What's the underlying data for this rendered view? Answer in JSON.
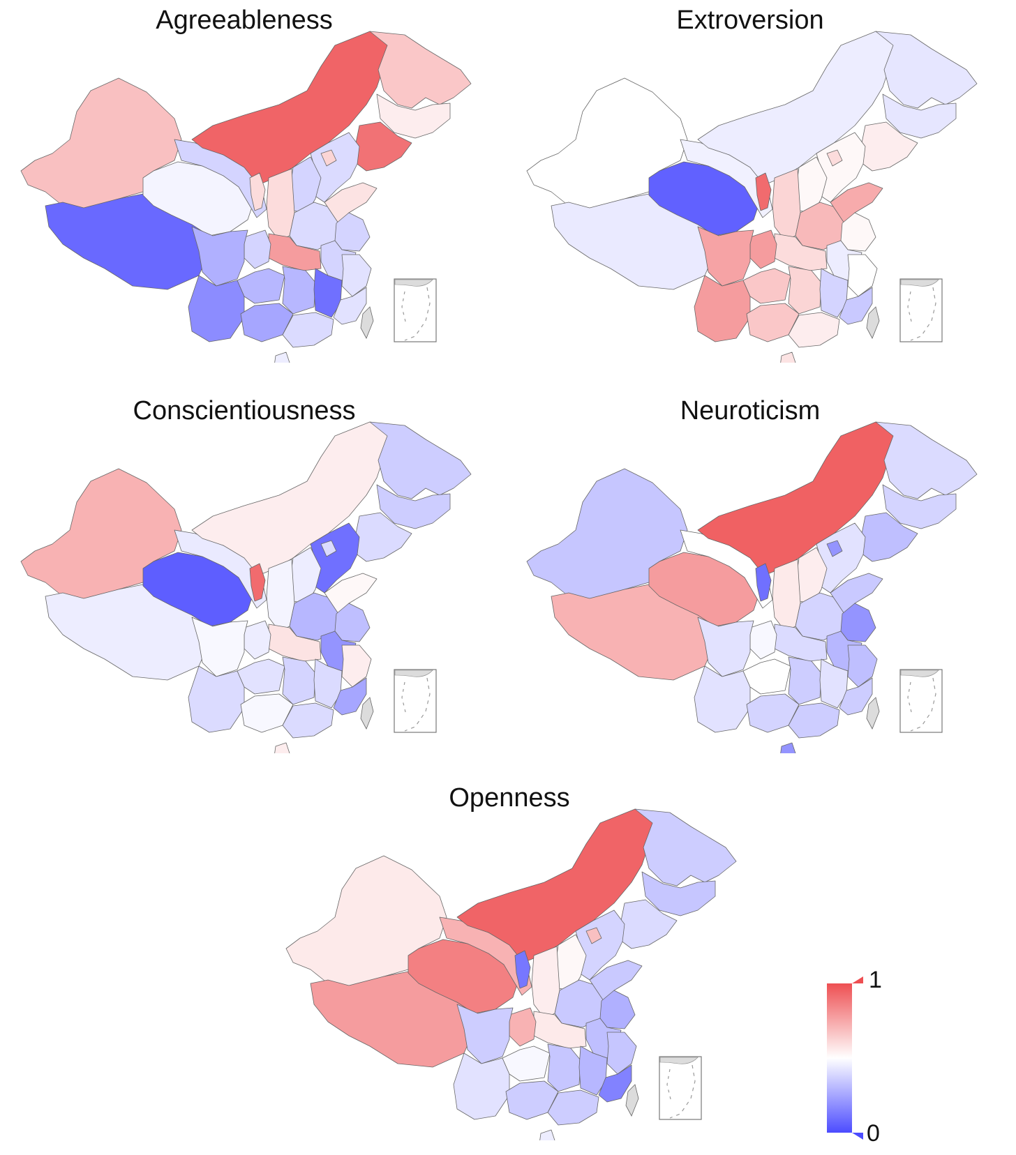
{
  "colors": {
    "high": "#ee4f52",
    "mid": "#ffffff",
    "low": "#4c4cff",
    "taiwan": "#dcdcdc",
    "border": "#666666"
  },
  "panels": [
    {
      "title": "Agreeableness",
      "values": {
        "xinjiang": 0.68,
        "tibet": 0.08,
        "qinghai": 0.47,
        "gansu": 0.38,
        "inner_mongolia": 0.94,
        "heilongjiang": 0.66,
        "jilin": 0.55,
        "liaoning": 0.9,
        "hebei": 0.4,
        "shanxi": 0.38,
        "shaanxi": 0.6,
        "ningxia": 0.6,
        "sichuan": 0.28,
        "chongqing": 0.38,
        "yunnan": 0.18,
        "guizhou": 0.3,
        "guangxi": 0.25,
        "guangdong": 0.4,
        "hunan": 0.3,
        "hubei": 0.78,
        "henan": 0.4,
        "shandong": 0.58,
        "jiangsu": 0.38,
        "anhui": 0.38,
        "zhejiang": 0.42,
        "jiangxi": 0.1,
        "fujian": 0.42,
        "hainan": 0.45,
        "beijing": 0.62
      }
    },
    {
      "title": "Extroversion",
      "values": {
        "xinjiang": 0.5,
        "tibet": 0.44,
        "qinghai": 0.06,
        "gansu": 0.46,
        "inner_mongolia": 0.45,
        "heilongjiang": 0.43,
        "jilin": 0.43,
        "liaoning": 0.55,
        "hebei": 0.52,
        "shanxi": 0.52,
        "shaanxi": 0.62,
        "ningxia": 0.92,
        "sichuan": 0.76,
        "chongqing": 0.78,
        "yunnan": 0.78,
        "guizhou": 0.66,
        "guangxi": 0.66,
        "guangdong": 0.55,
        "hunan": 0.62,
        "hubei": 0.6,
        "henan": 0.7,
        "shandong": 0.74,
        "jiangsu": 0.52,
        "anhui": 0.45,
        "zhejiang": 0.5,
        "jiangxi": 0.38,
        "fujian": 0.35,
        "hainan": 0.58,
        "beijing": 0.6
      }
    },
    {
      "title": "Conscientiousness",
      "values": {
        "xinjiang": 0.72,
        "tibet": 0.45,
        "qinghai": 0.05,
        "gansu": 0.44,
        "inner_mongolia": 0.55,
        "heilongjiang": 0.36,
        "jilin": 0.36,
        "liaoning": 0.4,
        "hebei": 0.1,
        "shanxi": 0.45,
        "shaanxi": 0.47,
        "ningxia": 0.92,
        "sichuan": 0.48,
        "chongqing": 0.45,
        "yunnan": 0.4,
        "guizhou": 0.42,
        "guangxi": 0.48,
        "guangdong": 0.4,
        "hunan": 0.38,
        "hubei": 0.58,
        "henan": 0.3,
        "shandong": 0.52,
        "jiangsu": 0.32,
        "anhui": 0.2,
        "zhejiang": 0.55,
        "jiangxi": 0.4,
        "fujian": 0.25,
        "hainan": 0.55,
        "beijing": 0.4
      }
    },
    {
      "title": "Neuroticism",
      "values": {
        "xinjiang": 0.34,
        "tibet": 0.72,
        "qinghai": 0.78,
        "gansu": 0.5,
        "inner_mongolia": 0.95,
        "heilongjiang": 0.4,
        "jilin": 0.38,
        "liaoning": 0.32,
        "hebei": 0.42,
        "shanxi": 0.55,
        "shaanxi": 0.56,
        "ningxia": 0.1,
        "sichuan": 0.42,
        "chongqing": 0.48,
        "yunnan": 0.42,
        "guizhou": 0.5,
        "guangxi": 0.38,
        "guangdong": 0.36,
        "hunan": 0.36,
        "hubei": 0.4,
        "henan": 0.38,
        "shandong": 0.35,
        "jiangsu": 0.2,
        "anhui": 0.3,
        "zhejiang": 0.32,
        "jiangxi": 0.42,
        "fujian": 0.36,
        "hainan": 0.2,
        "beijing": 0.2
      }
    },
    {
      "title": "Openness",
      "values": {
        "xinjiang": 0.56,
        "tibet": 0.78,
        "qinghai": 0.86,
        "gansu": 0.72,
        "inner_mongolia": 0.94,
        "heilongjiang": 0.36,
        "jilin": 0.34,
        "liaoning": 0.4,
        "hebei": 0.38,
        "shanxi": 0.52,
        "shaanxi": 0.55,
        "ningxia": 0.12,
        "sichuan": 0.36,
        "chongqing": 0.72,
        "yunnan": 0.42,
        "guizhou": 0.48,
        "guangxi": 0.36,
        "guangdong": 0.36,
        "hunan": 0.34,
        "hubei": 0.56,
        "henan": 0.35,
        "shandong": 0.35,
        "jiangsu": 0.28,
        "anhui": 0.32,
        "zhejiang": 0.34,
        "jiangxi": 0.3,
        "fujian": 0.15,
        "hainan": 0.45,
        "beijing": 0.68
      }
    }
  ],
  "legend": {
    "max_label": "1",
    "min_label": "0"
  }
}
